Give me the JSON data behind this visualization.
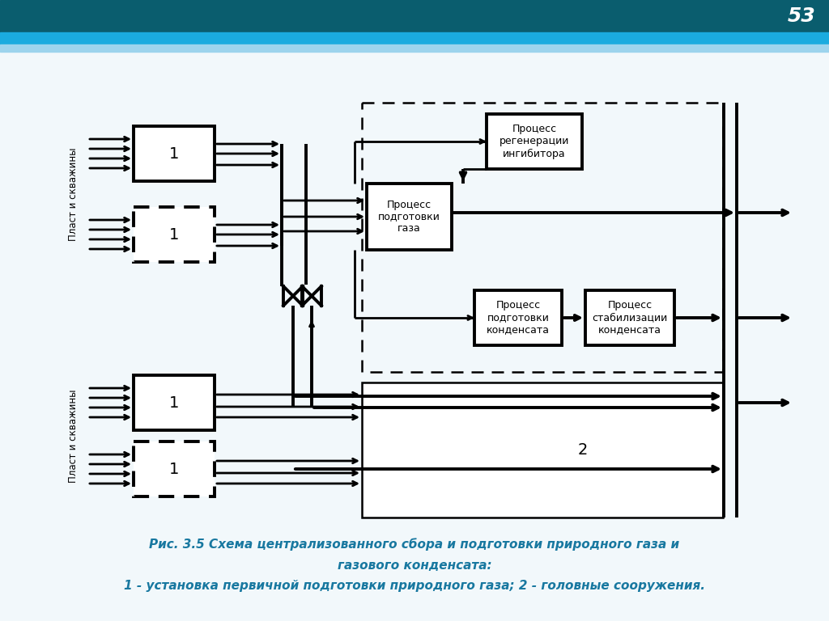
{
  "bg_color": "#f2f8fb",
  "header_dark": "#0a5d6e",
  "header_mid": "#1aabdf",
  "header_light": "#9dd4ed",
  "page_num": "53",
  "caption_color": "#1878a0",
  "cap1": "Рис. 3.5 Схема централизованного сбора и подготовки природного газа и",
  "cap2": "газового конденсата:",
  "cap3": "1 - установка первичной подготовки природного газа; 2 - головные сооружения.",
  "label_plast": "Пласт и скважины",
  "label_1": "1",
  "label_2": "2",
  "box_proc_gas": "Процесс\nподготовки\nгаза",
  "box_regen": "Процесс\nрегенерации\nингибитора",
  "box_kond": "Процесс\nподготовки\nконденсата",
  "box_stab": "Процесс\nстабилизации\nконденсата",
  "lw": 2.0,
  "lw_heavy": 2.8
}
